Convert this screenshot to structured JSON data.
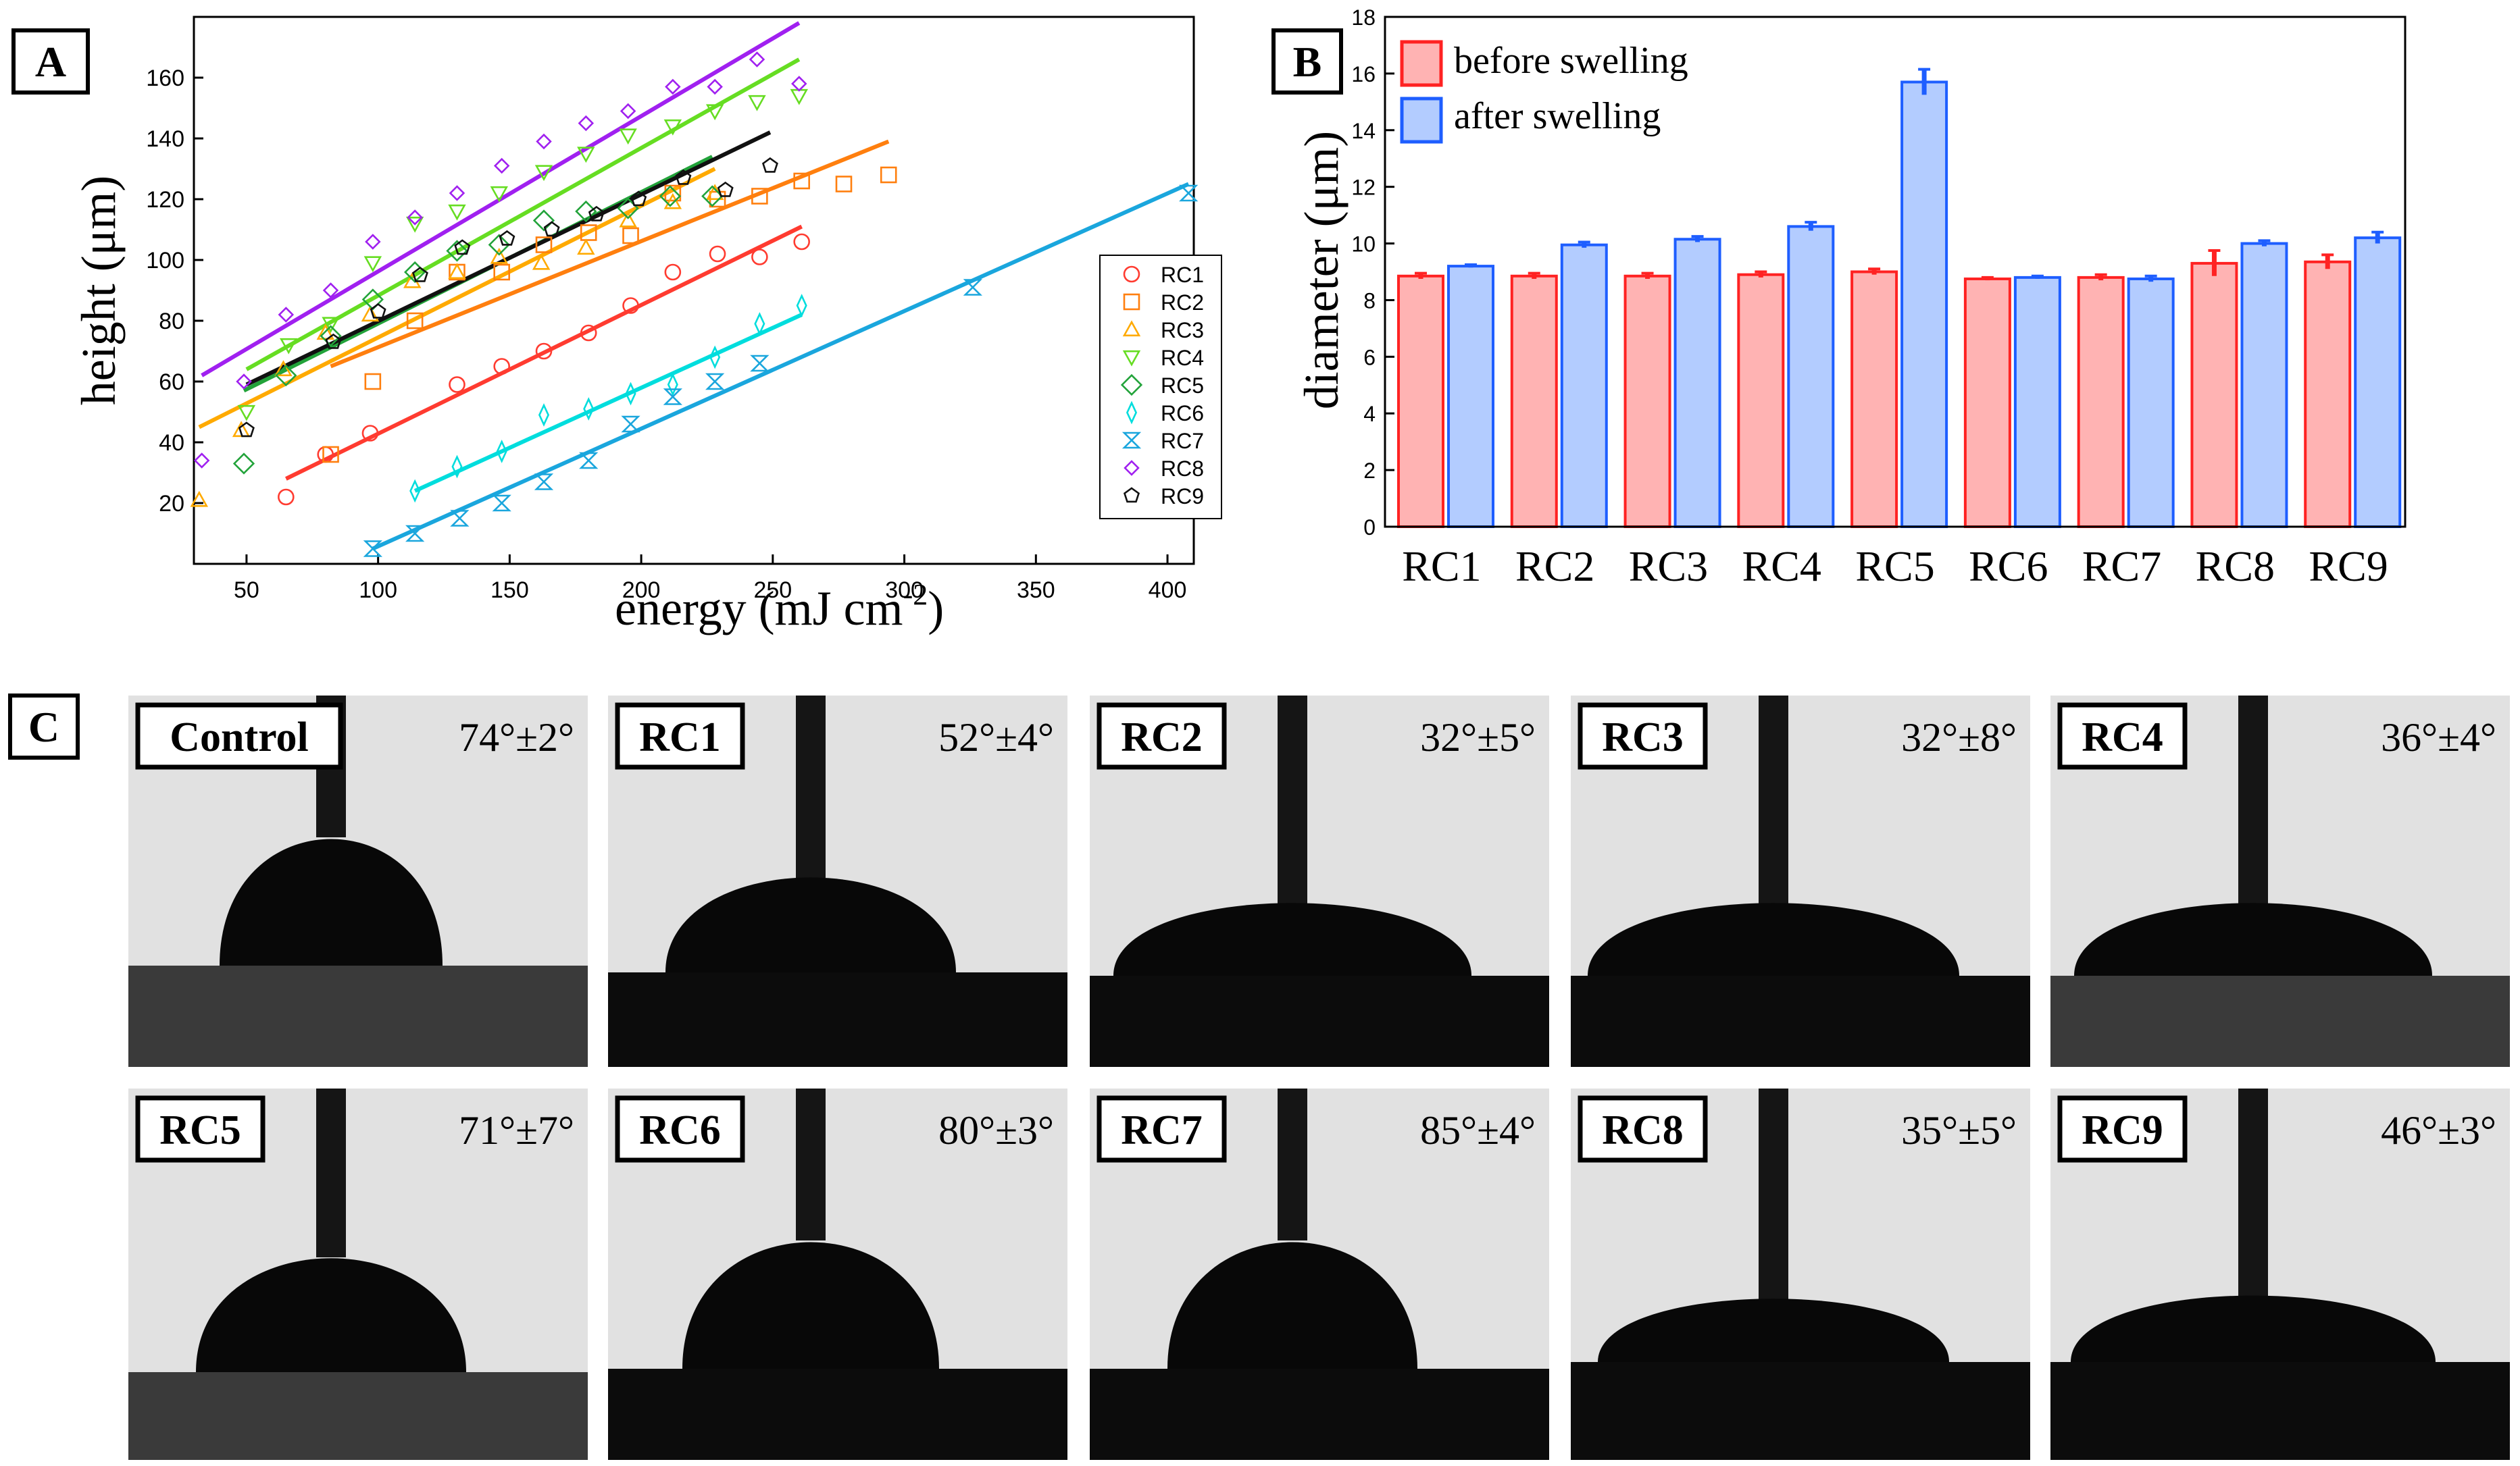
{
  "chart_data": [
    {
      "panel": "A",
      "type": "scatter",
      "panel_label": "A",
      "xlabel_text": "energy (mJ cm",
      "xlabel_sup": "-2",
      "xlabel_close": ")",
      "ylabel": "height (μm)",
      "xlim": [
        30,
        410
      ],
      "ylim": [
        0,
        180
      ],
      "xticks": [
        50,
        100,
        150,
        200,
        250,
        300,
        350,
        400
      ],
      "yticks": [
        20,
        40,
        60,
        80,
        100,
        120,
        140,
        160
      ],
      "grid": false,
      "legend_position": "bottom-right",
      "series": [
        {
          "name": "RC1",
          "color": "#ff3b30",
          "marker": "circle",
          "x": [
            65,
            80,
            97,
            130,
            147,
            163,
            180,
            196,
            212,
            229,
            245,
            261
          ],
          "y": [
            22,
            36,
            43,
            59,
            65,
            70,
            76,
            85,
            96,
            102,
            101,
            106
          ],
          "fit": [
            [
              65,
              28
            ],
            [
              261,
              111
            ]
          ]
        },
        {
          "name": "RC2",
          "color": "#ff7f0e",
          "marker": "square",
          "x": [
            82,
            98,
            114,
            130,
            147,
            163,
            180,
            196,
            212,
            229,
            245,
            261,
            277,
            294
          ],
          "y": [
            36,
            60,
            80,
            96,
            96,
            105,
            109,
            108,
            122,
            120,
            121,
            126,
            125,
            128
          ],
          "fit": [
            [
              82,
              65
            ],
            [
              294,
              139
            ]
          ]
        },
        {
          "name": "RC3",
          "color": "#ffaa00",
          "marker": "triangle-up",
          "x": [
            32,
            48,
            64,
            80,
            97,
            113,
            130,
            146,
            162,
            179,
            195,
            212,
            228
          ],
          "y": [
            21,
            44,
            64,
            76,
            82,
            93,
            96,
            101,
            99,
            104,
            113,
            119,
            122
          ],
          "fit": [
            [
              32,
              45
            ],
            [
              228,
              130
            ]
          ]
        },
        {
          "name": "RC4",
          "color": "#66dd22",
          "marker": "triangle-down",
          "x": [
            50,
            66,
            82,
            98,
            114,
            130,
            146,
            163,
            179,
            195,
            212,
            228,
            244,
            260
          ],
          "y": [
            50,
            72,
            79,
            99,
            112,
            116,
            122,
            129,
            135,
            141,
            144,
            149,
            152,
            154
          ],
          "fit": [
            [
              50,
              64
            ],
            [
              260,
              166
            ]
          ]
        },
        {
          "name": "RC5",
          "color": "#22a33a",
          "marker": "diamond",
          "x": [
            49,
            65,
            82,
            98,
            114,
            130,
            146,
            163,
            179,
            195,
            211,
            227
          ],
          "y": [
            33,
            62,
            75,
            87,
            96,
            103,
            105,
            113,
            116,
            117,
            121,
            121
          ],
          "fit": [
            [
              49,
              57
            ],
            [
              227,
              134
            ]
          ]
        },
        {
          "name": "RC6",
          "color": "#00dddd",
          "marker": "thin-diamond",
          "x": [
            114,
            130,
            147,
            163,
            180,
            196,
            212,
            228,
            245,
            261
          ],
          "y": [
            24,
            32,
            37,
            49,
            51,
            56,
            59,
            68,
            79,
            85
          ],
          "fit": [
            [
              114,
              24
            ],
            [
              261,
              82
            ]
          ]
        },
        {
          "name": "RC7",
          "color": "#1aa6dd",
          "marker": "hourglass",
          "x": [
            98,
            114,
            131,
            147,
            163,
            180,
            196,
            212,
            228,
            245,
            326,
            408
          ],
          "y": [
            5,
            10,
            15,
            20,
            27,
            34,
            46,
            55,
            60,
            66,
            91,
            122
          ],
          "fit": [
            [
              98,
              5
            ],
            [
              408,
              125
            ]
          ]
        },
        {
          "name": "RC8",
          "color": "#a020f0",
          "marker": "small-diamond",
          "x": [
            33,
            49,
            65,
            82,
            98,
            114,
            130,
            147,
            163,
            179,
            195,
            212,
            228,
            244,
            260
          ],
          "y": [
            34,
            60,
            82,
            90,
            106,
            114,
            122,
            131,
            139,
            145,
            149,
            157,
            157,
            166,
            158
          ],
          "fit": [
            [
              33,
              62
            ],
            [
              260,
              178
            ]
          ]
        },
        {
          "name": "RC9",
          "color": "#111111",
          "marker": "pentagon",
          "x": [
            50,
            83,
            100,
            116,
            132,
            149,
            166,
            183,
            199,
            216,
            232,
            249
          ],
          "y": [
            44,
            73,
            83,
            95,
            104,
            107,
            110,
            115,
            120,
            127,
            123,
            131
          ],
          "fit": [
            [
              50,
              59
            ],
            [
              249,
              142
            ]
          ]
        }
      ]
    },
    {
      "panel": "B",
      "type": "bar",
      "panel_label": "B",
      "categories": [
        "RC1",
        "RC2",
        "RC3",
        "RC4",
        "RC5",
        "RC6",
        "RC7",
        "RC8",
        "RC9"
      ],
      "ylabel": "diameter (μm)",
      "xlabel": "",
      "ylim": [
        0,
        18
      ],
      "yticks": [
        0,
        2,
        4,
        6,
        8,
        10,
        12,
        14,
        16,
        18
      ],
      "grid": false,
      "legend_position": "top-left",
      "series": [
        {
          "name": "before swelling",
          "fill": "#ffb3b3",
          "edge": "#ff2222",
          "values": [
            8.85,
            8.85,
            8.85,
            8.9,
            9.0,
            8.75,
            8.8,
            9.3,
            9.35
          ],
          "errors": [
            0.1,
            0.1,
            0.1,
            0.1,
            0.1,
            0.05,
            0.1,
            0.45,
            0.25
          ]
        },
        {
          "name": "after swelling",
          "fill": "#b3ccff",
          "edge": "#1e5eff",
          "values": [
            9.2,
            9.95,
            10.15,
            10.6,
            15.7,
            8.8,
            8.75,
            10.0,
            10.2
          ],
          "errors": [
            0.05,
            0.1,
            0.1,
            0.15,
            0.45,
            0.05,
            0.1,
            0.1,
            0.2
          ]
        }
      ]
    }
  ],
  "panel_c": {
    "panel_label": "C",
    "images": [
      {
        "label": "Control",
        "angle": "74°±2°",
        "kind": "contact-angle photo: high bubble-like droplet"
      },
      {
        "label": "RC1",
        "angle": "52°±4°",
        "kind": "contact-angle photo"
      },
      {
        "label": "RC2",
        "angle": "32°±5°",
        "kind": "contact-angle photo"
      },
      {
        "label": "RC3",
        "angle": "32°±8°",
        "kind": "contact-angle photo"
      },
      {
        "label": "RC4",
        "angle": "36°±4°",
        "kind": "contact-angle photo"
      },
      {
        "label": "RC5",
        "angle": "71°±7°",
        "kind": "contact-angle photo"
      },
      {
        "label": "RC6",
        "angle": "80°±3°",
        "kind": "contact-angle photo"
      },
      {
        "label": "RC7",
        "angle": "85°±4°",
        "kind": "contact-angle photo"
      },
      {
        "label": "RC8",
        "angle": "35°±5°",
        "kind": "contact-angle photo"
      },
      {
        "label": "RC9",
        "angle": "46°±3°",
        "kind": "contact-angle photo"
      }
    ]
  },
  "colors": {
    "photo_background": "#e1e1e1",
    "substrate": "#0c0c0c",
    "droplet": "#080808"
  }
}
